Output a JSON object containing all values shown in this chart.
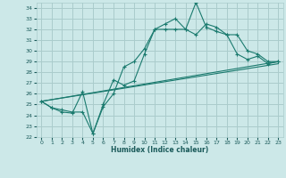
{
  "xlabel": "Humidex (Indice chaleur)",
  "xlim": [
    -0.5,
    23.5
  ],
  "ylim": [
    22,
    34.5
  ],
  "yticks": [
    22,
    23,
    24,
    25,
    26,
    27,
    28,
    29,
    30,
    31,
    32,
    33,
    34
  ],
  "xticks": [
    0,
    1,
    2,
    3,
    4,
    5,
    6,
    7,
    8,
    9,
    10,
    11,
    12,
    13,
    14,
    15,
    16,
    17,
    18,
    19,
    20,
    21,
    22,
    23
  ],
  "bg_color": "#cce8e8",
  "line_color": "#1a7a6e",
  "grid_color": "#aacccc",
  "line1_x": [
    0,
    1,
    2,
    3,
    4,
    5,
    6,
    7,
    8,
    9,
    10,
    11,
    12,
    13,
    14,
    15,
    16,
    17,
    18,
    19,
    20,
    21,
    22,
    23
  ],
  "line1_y": [
    25.3,
    24.7,
    24.5,
    24.3,
    24.3,
    22.3,
    25.0,
    27.3,
    26.8,
    27.2,
    29.7,
    32.0,
    32.0,
    32.0,
    32.0,
    31.5,
    32.5,
    32.2,
    31.5,
    29.7,
    29.2,
    29.5,
    28.8,
    29.0
  ],
  "line2_x": [
    0,
    1,
    2,
    3,
    4,
    5,
    6,
    7,
    8,
    9,
    10,
    11,
    12,
    13,
    14,
    15,
    16,
    17,
    18,
    19,
    20,
    21,
    22,
    23
  ],
  "line2_y": [
    25.3,
    24.7,
    24.3,
    24.2,
    26.2,
    22.3,
    24.8,
    26.0,
    28.5,
    29.0,
    30.2,
    32.0,
    32.5,
    33.0,
    32.0,
    34.5,
    32.2,
    31.8,
    31.5,
    31.5,
    30.0,
    29.7,
    29.0,
    29.0
  ],
  "line3_x": [
    0,
    23
  ],
  "line3_y": [
    25.3,
    29.0
  ],
  "line4_x": [
    0,
    23
  ],
  "line4_y": [
    25.3,
    28.8
  ]
}
